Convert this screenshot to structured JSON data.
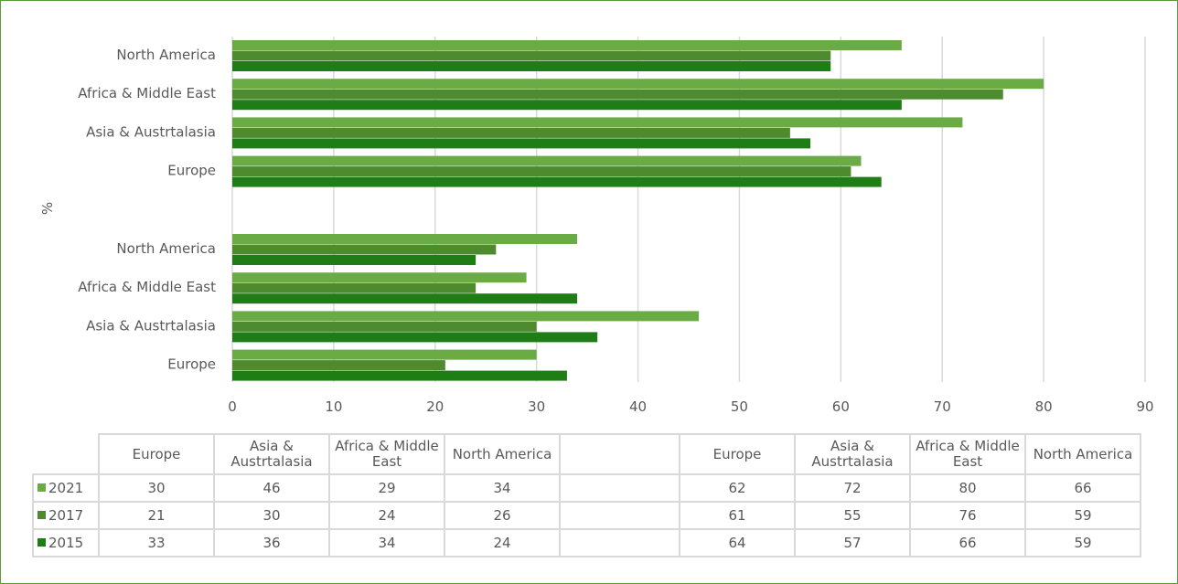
{
  "colors": {
    "s2021": "#6aab45",
    "s2017": "#4e8b2f",
    "s2015": "#1e7d14",
    "grid": "#d9d9d9",
    "frame": "#5a9a3a"
  },
  "chart_data": {
    "type": "bar",
    "orientation": "horizontal",
    "ylabel": "%",
    "xlim": [
      0,
      90
    ],
    "x_ticks": [
      "0",
      "10",
      "20",
      "30",
      "40",
      "50",
      "60",
      "70",
      "80",
      "90"
    ],
    "grid": "vertical",
    "groups": [
      {
        "categories": [
          "Europe",
          "Asia & Austrtalasia",
          "Africa & Middle East",
          "North America"
        ],
        "series": [
          {
            "name": "2021",
            "values": [
              30,
              46,
              29,
              34
            ]
          },
          {
            "name": "2017",
            "values": [
              21,
              30,
              24,
              26
            ]
          },
          {
            "name": "2015",
            "values": [
              33,
              36,
              34,
              24
            ]
          }
        ]
      },
      {
        "categories": [
          "Europe",
          "Asia & Austrtalasia",
          "Africa & Middle East",
          "North America"
        ],
        "series": [
          {
            "name": "2021",
            "values": [
              62,
              72,
              80,
              66
            ]
          },
          {
            "name": "2017",
            "values": [
              61,
              55,
              76,
              59
            ]
          },
          {
            "name": "2015",
            "values": [
              64,
              57,
              66,
              59
            ]
          }
        ]
      }
    ],
    "table_headers": [
      "Europe",
      "Asia & Austrtalasia",
      "Africa & Middle East",
      "North America",
      "",
      "Europe",
      "Asia & Austrtalasia",
      "Africa & Middle East",
      "North America"
    ]
  }
}
